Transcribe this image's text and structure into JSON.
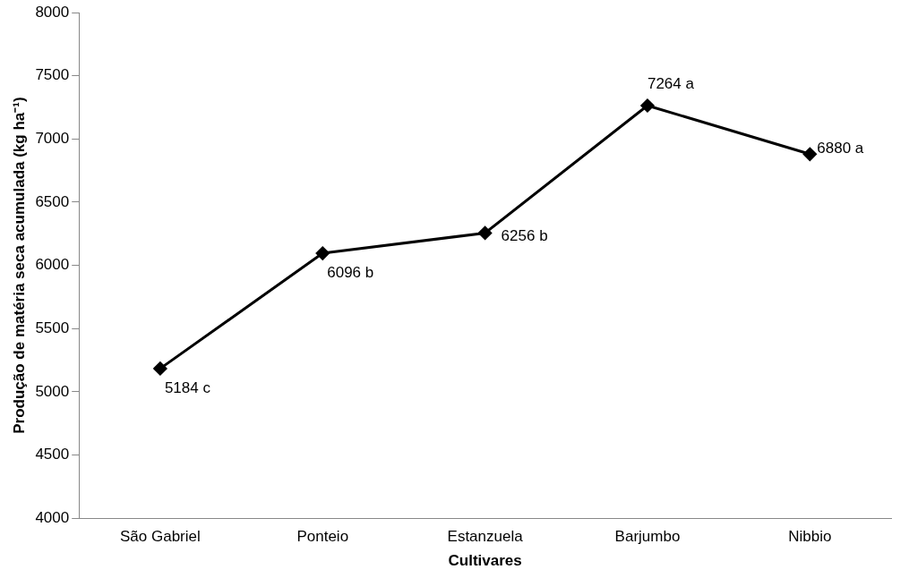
{
  "chart_data": {
    "type": "line",
    "xlabel": "Cultivares",
    "ylabel": "Produção de matéria seca acumulada (kg ha⁻¹)",
    "categories": [
      "São Gabriel",
      "Ponteio",
      "Estanzuela",
      "Barjumbo",
      "Nibbio"
    ],
    "series": [
      {
        "color": "#000000",
        "values": [
          5184,
          6096,
          6256,
          7264,
          6880
        ],
        "value_labels": [
          "5184 c",
          "6096 b",
          "6256 b",
          "7264 a",
          "6880 a"
        ]
      }
    ],
    "ylim": [
      4000,
      8000
    ],
    "yticks": [
      4000,
      4500,
      5000,
      5500,
      6000,
      6500,
      7000,
      7500,
      8000
    ],
    "grid": false,
    "legend": false,
    "marker": "diamond",
    "line_style": "solid"
  }
}
